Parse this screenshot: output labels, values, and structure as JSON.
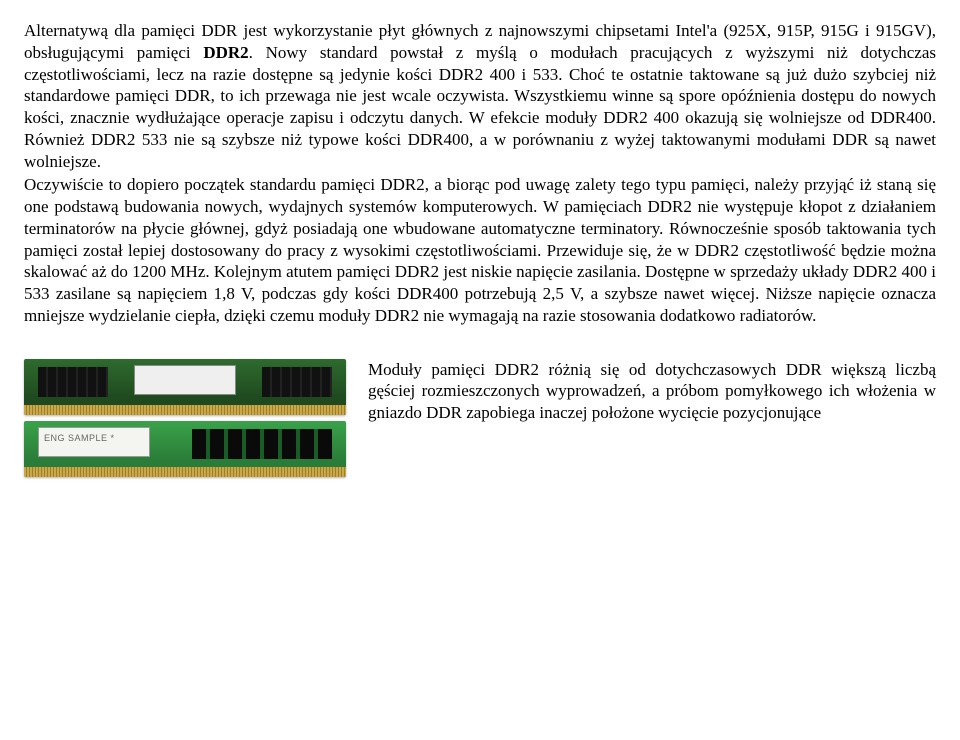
{
  "para1_a": "Alternatywą dla pamięci DDR jest wykorzystanie płyt głównych z najnowszymi chipsetami Intel'a (925X, 915P, 915G i 915GV), obsługującymi pamięci ",
  "para1_bold": "DDR2",
  "para1_b": ". Nowy standard powstał z myślą o modułach pracujących z wyższymi niż dotychczas częstotliwościami, lecz na razie dostępne są jedynie kości DDR2 400 i 533. Choć te ostatnie taktowane są już dużo szybciej niż standardowe pamięci DDR, to ich przewaga nie jest wcale oczywista. Wszystkiemu winne są spore opóźnienia dostępu do nowych kości, znacznie wydłużające operacje zapisu i odczytu danych. W efekcie moduły DDR2 400 okazują się wolniejsze od DDR400. Również DDR2 533 nie są szybsze niż typowe kości DDR400, a w porównaniu z wyżej taktowanymi modułami DDR są nawet wolniejsze.",
  "para2": "Oczywiście to dopiero początek standardu pamięci DDR2, a biorąc pod uwagę zalety tego typu pamięci, należy przyjąć iż staną się one podstawą budowania nowych, wydajnych systemów komputerowych. W pamięciach DDR2 nie występuje kłopot z działaniem terminatorów na płycie głównej, gdyż posiadają one wbudowane automatyczne terminatory. Równocześnie sposób taktowania tych pamięci został lepiej dostosowany do pracy z wysokimi częstotliwościami. Przewiduje się, że w DDR2 częstotliwość będzie można skalować aż do 1200 MHz. Kolejnym atutem pamięci DDR2 jest niskie napięcie zasilania. Dostępne w sprzedaży układy DDR2 400 i 533 zasilane są napięciem 1,8 V, podczas gdy kości DDR400 potrzebują 2,5 V, a szybsze nawet więcej. Niższe napięcie oznacza mniejsze wydzielanie ciepła, dzięki czemu moduły DDR2 nie wymagają na razie stosowania dodatkowo radiatorów.",
  "side": "Moduły pamięci DDR2 różnią się od dotychczasowych DDR większą liczbą gęściej rozmieszczonych wyprowadzeń, a próbom pomyłkowego ich włożenia w gniazdo DDR zapobiega inaczej położone wycięcie pozycjonujące",
  "sample_label": "ENG SAMPLE *"
}
